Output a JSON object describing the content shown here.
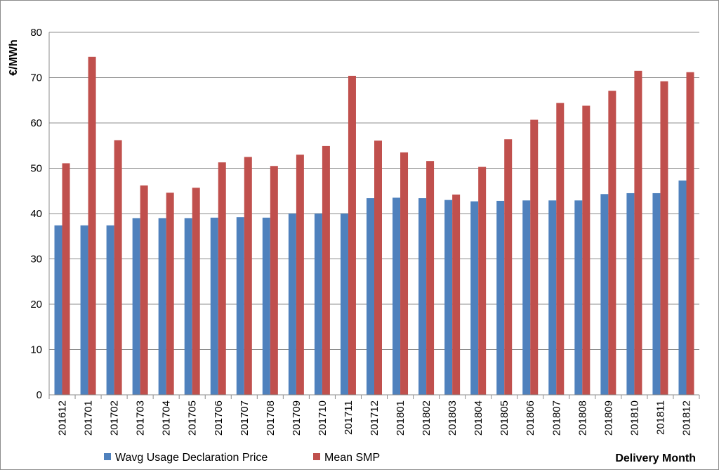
{
  "chart_data": {
    "type": "bar",
    "ylabel": "€/MWh",
    "xlabel": "Delivery Month",
    "ylim": [
      0,
      80
    ],
    "yticks": [
      0,
      10,
      20,
      30,
      40,
      50,
      60,
      70,
      80
    ],
    "grid": true,
    "legend_position": "bottom",
    "categories": [
      "201612",
      "201701",
      "201702",
      "201703",
      "201704",
      "201705",
      "201706",
      "201707",
      "201708",
      "201709",
      "201710",
      "201711",
      "201712",
      "201801",
      "201802",
      "201803",
      "201804",
      "201805",
      "201806",
      "201807",
      "201808",
      "201809",
      "201810",
      "201811",
      "201812"
    ],
    "series": [
      {
        "name": "Wavg Usage Declaration Price",
        "color": "#4f81bd",
        "values": [
          37.4,
          37.4,
          37.4,
          39.0,
          39.0,
          39.0,
          39.1,
          39.2,
          39.1,
          40.0,
          40.0,
          40.0,
          43.4,
          43.5,
          43.4,
          43.0,
          42.7,
          42.8,
          42.9,
          42.9,
          42.9,
          44.3,
          44.5,
          44.5,
          47.3
        ]
      },
      {
        "name": "Mean SMP",
        "color": "#c0504d",
        "values": [
          51.1,
          74.6,
          56.2,
          46.2,
          44.6,
          45.7,
          51.3,
          52.5,
          50.5,
          53.0,
          54.9,
          70.4,
          56.1,
          53.5,
          51.6,
          44.2,
          50.3,
          56.4,
          60.7,
          64.4,
          63.8,
          67.1,
          71.5,
          69.2,
          71.2
        ]
      }
    ]
  }
}
